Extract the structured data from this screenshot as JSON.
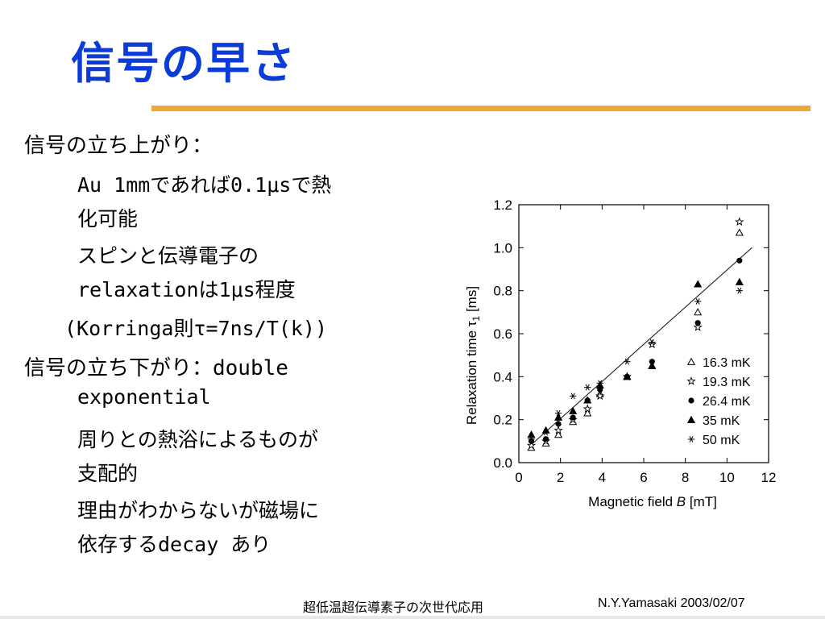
{
  "slide": {
    "title": "信号の早さ",
    "lines": [
      "信号の立ち上がり：",
      "Au 1mmであれば0.1μsで熱",
      "化可能",
      "スピンと伝導電子の",
      "relaxationは1μs程度",
      "(Korringa則τ=7ns/T(k))",
      "信号の立ち下がり：double",
      "exponential",
      "周りとの熱浴によるものが",
      "支配的",
      "理由がわからないが磁場に",
      "依存するdecay あり"
    ]
  },
  "footer": {
    "center": "超低温超伝導素子の次世代応用",
    "right": "N.Y.Yamasaki 2003/02/07"
  },
  "chart_data": {
    "type": "scatter",
    "xlabel": "Magnetic field",
    "xlabel_symbol": "B",
    "xlabel_unit": "[mT]",
    "ylabel": "Relaxation time",
    "ylabel_symbol": "τ",
    "ylabel_subscript": "1",
    "ylabel_unit": "[ms]",
    "xlim": [
      0,
      12
    ],
    "ylim": [
      0,
      1.2
    ],
    "xticks": [
      "0",
      "2",
      "4",
      "6",
      "8",
      "10",
      "12"
    ],
    "yticks": [
      "0.0",
      "0.2",
      "0.4",
      "0.6",
      "0.8",
      "1.0",
      "1.2"
    ],
    "legend_position": "lower-right",
    "series": [
      {
        "name": "16.3 mK",
        "marker": "open-triangle",
        "x": [
          0.6,
          1.3,
          1.9,
          2.6,
          3.3,
          3.9,
          5.2,
          6.4,
          8.6,
          10.6
        ],
        "y": [
          0.07,
          0.09,
          0.13,
          0.19,
          0.23,
          0.32,
          0.4,
          0.45,
          0.7,
          1.07
        ]
      },
      {
        "name": "19.3 mK",
        "marker": "open-star",
        "x": [
          0.6,
          1.3,
          1.9,
          2.6,
          3.3,
          3.9,
          5.2,
          6.4,
          8.6,
          10.6
        ],
        "y": [
          0.08,
          0.1,
          0.15,
          0.2,
          0.25,
          0.31,
          0.4,
          0.55,
          0.63,
          1.12
        ]
      },
      {
        "name": "26.4 mK",
        "marker": "filled-circle",
        "x": [
          0.6,
          1.3,
          1.9,
          2.6,
          3.3,
          3.9,
          5.2,
          6.4,
          8.6,
          10.6
        ],
        "y": [
          0.1,
          0.11,
          0.18,
          0.21,
          0.29,
          0.34,
          0.4,
          0.47,
          0.65,
          0.94
        ]
      },
      {
        "name": "35 mK",
        "marker": "filled-triangle",
        "x": [
          0.6,
          1.3,
          1.9,
          2.6,
          3.3,
          3.9,
          5.2,
          6.4,
          8.6,
          10.6
        ],
        "y": [
          0.13,
          0.15,
          0.21,
          0.24,
          0.29,
          0.36,
          0.4,
          0.45,
          0.83,
          0.84
        ]
      },
      {
        "name": "50 mK",
        "marker": "asterisk",
        "x": [
          0.6,
          1.3,
          1.9,
          2.6,
          3.3,
          3.9,
          5.2,
          6.4,
          8.6,
          10.6
        ],
        "y": [
          0.11,
          0.14,
          0.23,
          0.31,
          0.35,
          0.37,
          0.47,
          0.56,
          0.75,
          0.8
        ]
      }
    ],
    "fit_line": {
      "x": [
        0.5,
        11.2
      ],
      "y": [
        0.075,
        1.0
      ]
    }
  }
}
